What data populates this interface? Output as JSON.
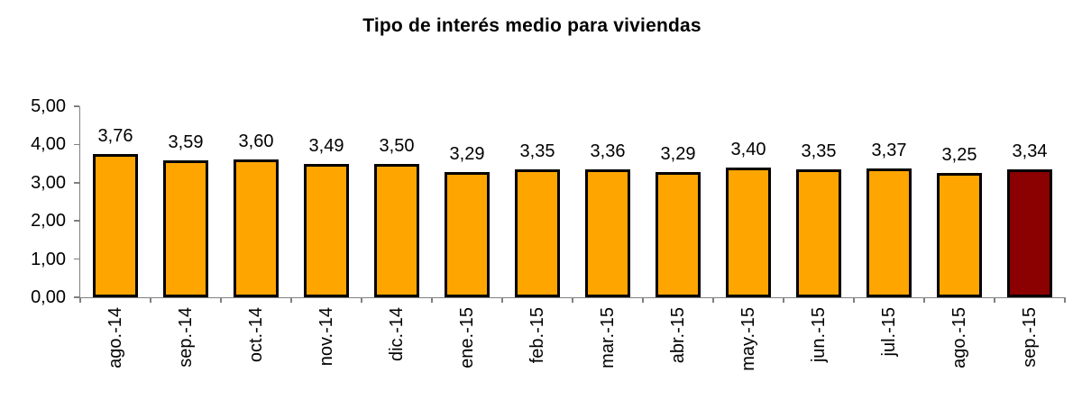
{
  "title": "Tipo de interés medio para viviendas",
  "colors": {
    "bar": "#FFA500",
    "highlight_bar": "#8B0000",
    "bar_border": "#000000",
    "axis": "#808080",
    "text": "#000000",
    "background": "#FFFFFF"
  },
  "chart_data": {
    "type": "bar",
    "title": "Tipo de interés medio para viviendas",
    "categories": [
      "ago.-14",
      "sep.-14",
      "oct.-14",
      "nov.-14",
      "dic.-14",
      "ene.-15",
      "feb.-15",
      "mar.-15",
      "abr.-15",
      "may.-15",
      "jun.-15",
      "jul.-15",
      "ago.-15",
      "sep.-15"
    ],
    "values": [
      3.76,
      3.59,
      3.6,
      3.49,
      3.5,
      3.29,
      3.35,
      3.36,
      3.29,
      3.4,
      3.35,
      3.37,
      3.25,
      3.34
    ],
    "value_labels": [
      "3,76",
      "3,59",
      "3,60",
      "3,49",
      "3,50",
      "3,29",
      "3,35",
      "3,36",
      "3,29",
      "3,40",
      "3,35",
      "3,37",
      "3,25",
      "3,34"
    ],
    "highlight_index": 13,
    "xlabel": "",
    "ylabel": "",
    "ylim": [
      0,
      5
    ],
    "y_tick_labels": [
      "5,00",
      "4,00",
      "3,00",
      "2,00",
      "1,00",
      "0,00"
    ],
    "grid": false,
    "legend": false
  }
}
